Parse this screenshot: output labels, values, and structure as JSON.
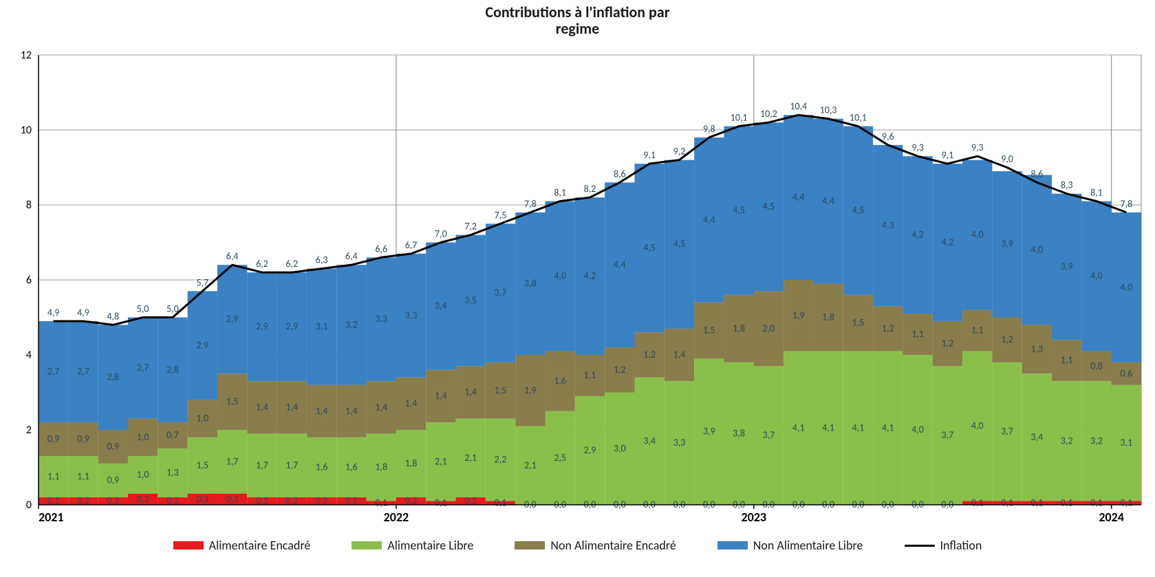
{
  "title_line1": "Contributions  à l'inflation  par",
  "title_line2": "regime",
  "title_fontsize": 22,
  "chart": {
    "type": "stacked_bar_with_line",
    "background_color": "#ffffff",
    "grid_color": "#9e9e9e",
    "axis_color": "#000000",
    "font_family": "Calibri, Arial, sans-serif",
    "ylim": [
      0,
      12
    ],
    "ytick_step": 2,
    "ytick_fontsize": 16,
    "xlabel_fontsize": 18,
    "datalabel_fontsize": 14,
    "datalabel_color": "#2a4a5a",
    "vertical_guide_color": "#808080",
    "line_color": "#000000",
    "line_width": 3,
    "bar_width": 1.0,
    "categories": [
      "2021",
      "",
      "",
      "",
      "",
      "",
      "",
      "",
      "",
      "",
      "",
      "",
      "2022",
      "",
      "",
      "",
      "",
      "",
      "",
      "",
      "",
      "",
      "",
      "",
      "2023",
      "",
      "",
      "",
      "",
      "",
      "",
      "",
      "",
      "",
      "",
      "",
      "2024"
    ],
    "vertical_guides_at": [
      0,
      12,
      24,
      36
    ],
    "series": [
      {
        "key": "alim_encadre",
        "label": "Alimentaire Encadré",
        "color": "#e41a1c",
        "values": [
          0.2,
          0.2,
          0.2,
          0.3,
          0.2,
          0.3,
          0.3,
          0.2,
          0.2,
          0.2,
          0.2,
          0.1,
          0.2,
          0.1,
          0.2,
          0.1,
          0.0,
          0.0,
          0.0,
          0.0,
          0.0,
          0.0,
          0.0,
          0.0,
          0.0,
          0.0,
          0.0,
          0.0,
          0.0,
          0.0,
          0.0,
          0.1,
          0.1,
          0.1,
          0.1,
          0.1,
          0.1
        ]
      },
      {
        "key": "alim_libre",
        "label": "Alimentaire Libre",
        "color": "#8bbf4b",
        "values": [
          1.1,
          1.1,
          0.9,
          1.0,
          1.3,
          1.5,
          1.7,
          1.7,
          1.7,
          1.6,
          1.6,
          1.8,
          1.8,
          2.1,
          2.1,
          2.2,
          2.1,
          2.5,
          2.9,
          3.0,
          3.4,
          3.3,
          3.9,
          3.8,
          3.7,
          4.1,
          4.1,
          4.1,
          4.1,
          4.0,
          3.7,
          4.0,
          3.7,
          3.4,
          3.2,
          3.2,
          3.1
        ]
      },
      {
        "key": "non_alim_encadre",
        "label": "Non Alimentaire Encadré",
        "color": "#8a7d4c",
        "values": [
          0.9,
          0.9,
          0.9,
          1.0,
          0.7,
          1.0,
          1.5,
          1.4,
          1.4,
          1.4,
          1.4,
          1.4,
          1.4,
          1.4,
          1.4,
          1.5,
          1.9,
          1.6,
          1.1,
          1.2,
          1.2,
          1.4,
          1.5,
          1.8,
          2.0,
          1.9,
          1.8,
          1.5,
          1.2,
          1.1,
          1.2,
          1.1,
          1.2,
          1.3,
          1.1,
          0.8,
          0.6
        ]
      },
      {
        "key": "non_alim_libre",
        "label": "Non Alimentaire Libre",
        "color": "#3a82c4",
        "values": [
          2.7,
          2.7,
          2.8,
          2.7,
          2.8,
          2.9,
          2.9,
          2.9,
          2.9,
          3.1,
          3.2,
          3.3,
          3.3,
          3.4,
          3.5,
          3.7,
          3.8,
          4.0,
          4.2,
          4.4,
          4.5,
          4.5,
          4.4,
          4.5,
          4.5,
          4.4,
          4.4,
          4.5,
          4.3,
          4.2,
          4.2,
          4.0,
          3.9,
          4.0,
          3.9,
          4.0,
          4.0
        ]
      }
    ],
    "line_series": {
      "key": "inflation",
      "label": "Inflation",
      "values": [
        4.9,
        4.9,
        4.8,
        5.0,
        5.0,
        5.7,
        6.4,
        6.2,
        6.2,
        6.3,
        6.4,
        6.6,
        6.7,
        7.0,
        7.2,
        7.5,
        7.8,
        8.1,
        8.2,
        8.6,
        9.1,
        9.2,
        9.8,
        10.1,
        10.2,
        10.4,
        10.3,
        10.1,
        9.6,
        9.3,
        9.1,
        9.3,
        9.0,
        8.6,
        8.3,
        8.1,
        7.8
      ]
    }
  },
  "legend": {
    "alim_encadre": "Alimentaire Encadré",
    "alim_libre": "Alimentaire Libre",
    "non_alim_encadre": "Non Alimentaire Encadré",
    "non_alim_libre": "Non Alimentaire Libre",
    "inflation": "Inflation"
  }
}
